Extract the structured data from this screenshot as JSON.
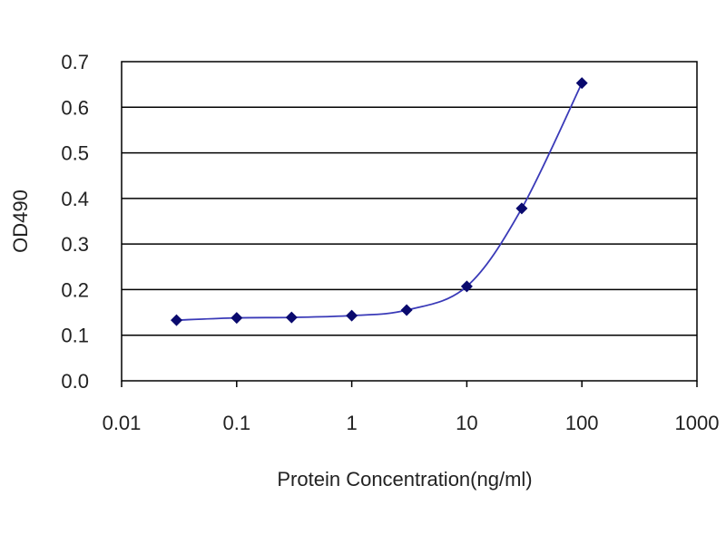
{
  "chart_data": {
    "type": "line",
    "xscale": "log",
    "xlabel": "Protein Concentration(ng/ml)",
    "ylabel": "OD490",
    "xlim": [
      0.01,
      1000
    ],
    "ylim": [
      0.0,
      0.7
    ],
    "xticks": [
      0.01,
      0.1,
      1,
      10,
      100,
      1000
    ],
    "xtick_labels": [
      "0.01",
      "0.1",
      "1",
      "10",
      "100",
      "1000"
    ],
    "yticks": [
      0.0,
      0.1,
      0.2,
      0.3,
      0.4,
      0.5,
      0.6,
      0.7
    ],
    "ytick_labels": [
      "0.0",
      "0.1",
      "0.2",
      "0.3",
      "0.4",
      "0.5",
      "0.6",
      "0.7"
    ],
    "grid": "horizontal",
    "legend": "none",
    "series": [
      {
        "x": [
          0.03,
          0.1,
          0.3,
          1,
          3,
          10,
          30,
          100
        ],
        "y": [
          0.133,
          0.138,
          0.139,
          0.143,
          0.155,
          0.207,
          0.378,
          0.653
        ],
        "line_color": "#3a3ab8",
        "marker_color": "#0a0a6e",
        "marker": "diamond"
      }
    ]
  }
}
